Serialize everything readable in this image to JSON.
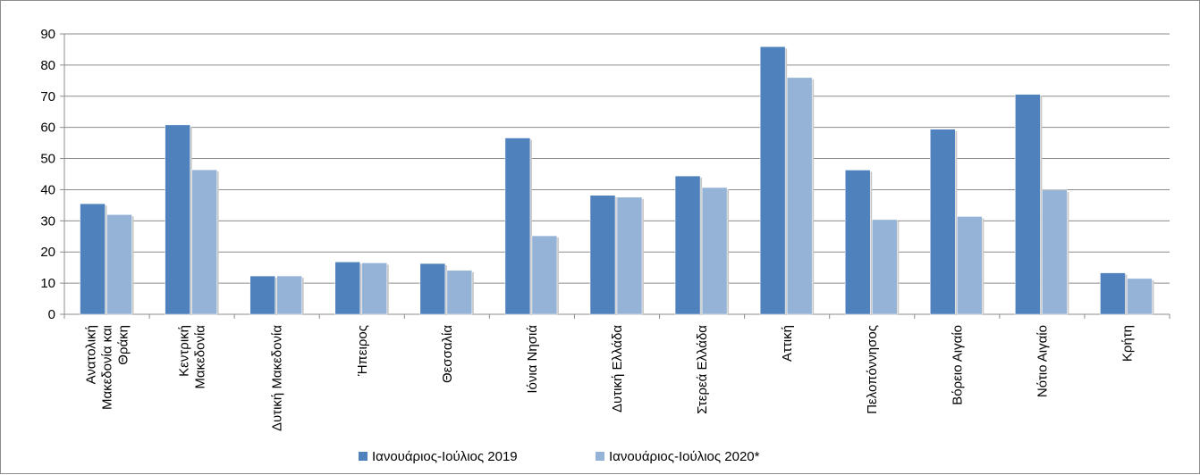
{
  "chart_data": {
    "type": "bar",
    "categories": [
      [
        "Ανατολική",
        "Μακεδονία και",
        "Θράκη"
      ],
      [
        "Κεντρική",
        "Μακεδονία"
      ],
      [
        "Δυτική Μακεδονία"
      ],
      [
        "Ήπειρος"
      ],
      [
        "Θεσσαλία"
      ],
      [
        "Ιόνια Νησιά"
      ],
      [
        "Δυτική Ελλάδα"
      ],
      [
        "Στερεά Ελλάδα"
      ],
      [
        "Αττική"
      ],
      [
        "Πελοπόννησος"
      ],
      [
        "Βόρειο Αιγαίο"
      ],
      [
        "Νότιο Αιγαίο"
      ],
      [
        "Κρήτη"
      ]
    ],
    "series": [
      {
        "name": "Ιανουάριος-Ιούλιος 2019",
        "color": "#4f81bd",
        "values": [
          35.5,
          60.8,
          12.3,
          16.8,
          16.3,
          56.6,
          38.2,
          44.4,
          85.9,
          46.3,
          59.4,
          70.6,
          13.3
        ]
      },
      {
        "name": "Ιανουάριος-Ιούλιος 2020*",
        "color": "#95b3d7",
        "values": [
          32.0,
          46.4,
          12.3,
          16.5,
          14.1,
          25.2,
          37.6,
          40.7,
          76.0,
          30.4,
          31.4,
          39.9,
          11.5
        ]
      }
    ],
    "yticks": [
      0,
      10,
      20,
      30,
      40,
      50,
      60,
      70,
      80,
      90
    ],
    "ylim": [
      0,
      90
    ],
    "grid": true,
    "legend_position": "bottom",
    "title": "",
    "xlabel": "",
    "ylabel": ""
  }
}
